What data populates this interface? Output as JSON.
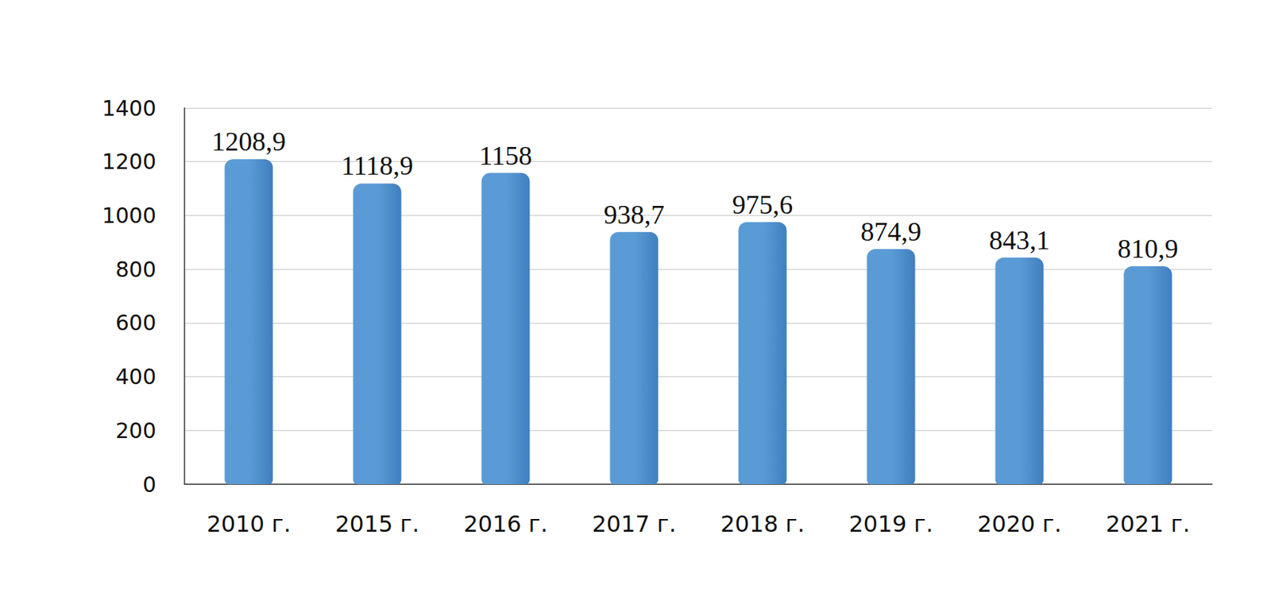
{
  "chart_data": {
    "type": "bar",
    "categories": [
      "2010 г.",
      "2015 г.",
      "2016 г.",
      "2017 г.",
      "2018 г.",
      "2019 г.",
      "2020 г.",
      "2021 г."
    ],
    "values": [
      1208.9,
      1118.9,
      1158,
      938.7,
      975.6,
      874.9,
      843.1,
      810.9
    ],
    "value_labels": [
      "1208,9",
      "1118,9",
      "1158",
      "938,7",
      "975,6",
      "874,9",
      "843,1",
      "810,9"
    ],
    "data_labels": true,
    "color": "#5b9bd5",
    "ylim": [
      0,
      1400
    ],
    "yticks": [
      0,
      200,
      400,
      600,
      800,
      1000,
      1200,
      1400
    ],
    "grid": true
  }
}
